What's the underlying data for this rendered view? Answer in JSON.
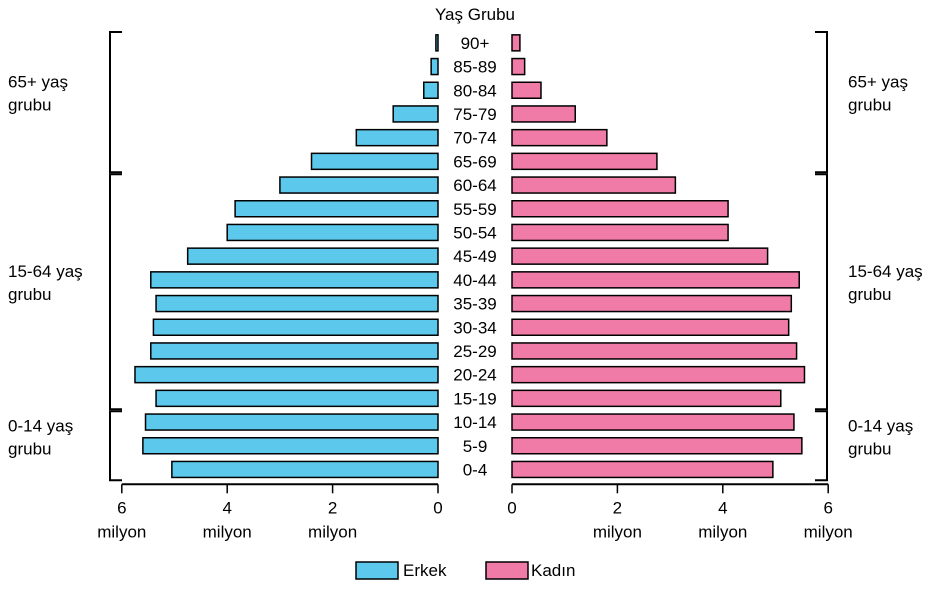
{
  "chart_data": {
    "type": "bar",
    "orientation": "horizontal",
    "subtype": "population-pyramid",
    "title": "Yaş Grubu",
    "categories": [
      "0-4",
      "5-9",
      "10-14",
      "15-19",
      "20-24",
      "25-29",
      "30-34",
      "35-39",
      "40-44",
      "45-49",
      "50-54",
      "55-59",
      "60-64",
      "65-69",
      "70-74",
      "75-79",
      "80-84",
      "85-89",
      "90+"
    ],
    "series": [
      {
        "name": "Erkek",
        "side": "left",
        "color": "#5bc8ec",
        "values": [
          5.05,
          5.6,
          5.55,
          5.35,
          5.75,
          5.45,
          5.4,
          5.35,
          5.45,
          4.75,
          4.0,
          3.85,
          3.0,
          2.4,
          1.55,
          0.85,
          0.27,
          0.13,
          0.04
        ]
      },
      {
        "name": "Kadın",
        "side": "right",
        "color": "#f07ba7",
        "values": [
          4.95,
          5.5,
          5.35,
          5.1,
          5.55,
          5.4,
          5.25,
          5.3,
          5.45,
          4.85,
          4.1,
          4.1,
          3.1,
          2.75,
          1.8,
          1.2,
          0.55,
          0.24,
          0.15
        ]
      }
    ],
    "x_ticks": [
      "6",
      "4",
      "2",
      "0"
    ],
    "x_unit": "milyon",
    "xlim": [
      0,
      6
    ],
    "grid": false,
    "legend_position": "bottom-center",
    "groups": [
      {
        "label": "65+ yaş grubu",
        "lines": [
          "65+ yaş",
          "grubu"
        ],
        "from": "65-69",
        "to": "90+"
      },
      {
        "label": "15-64 yaş grubu",
        "lines": [
          "15-64 yaş",
          "grubu"
        ],
        "from": "15-19",
        "to": "60-64"
      },
      {
        "label": "0-14 yaş grubu",
        "lines": [
          "0-14 yaş",
          "grubu"
        ],
        "from": "0-4",
        "to": "10-14"
      }
    ]
  }
}
